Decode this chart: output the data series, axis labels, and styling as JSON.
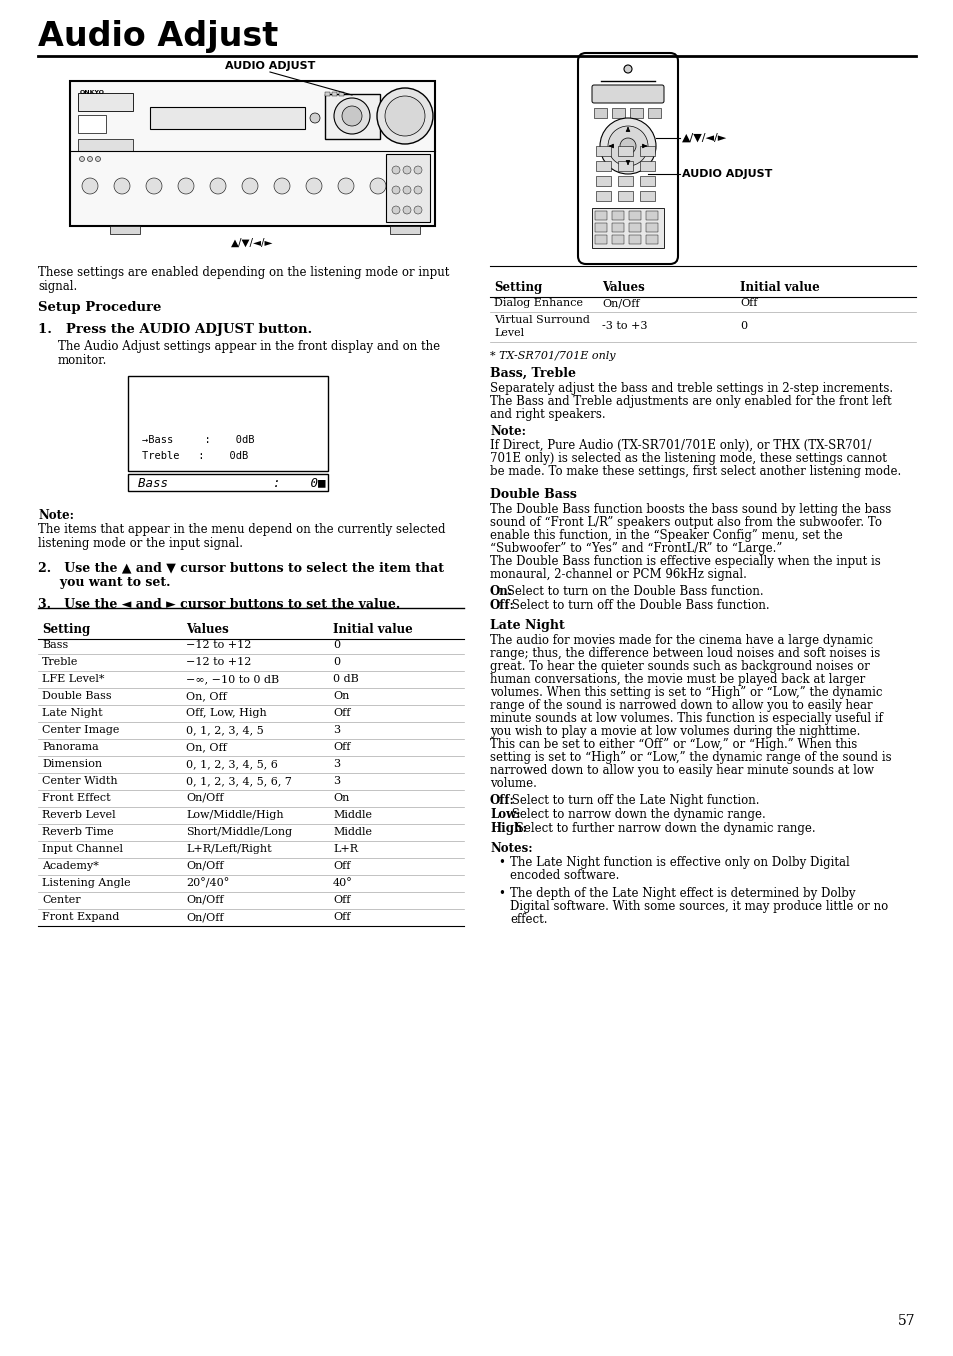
{
  "title": "Audio Adjust",
  "page_number": "57",
  "intro_line1": "These settings are enabled depending on the listening mode or input",
  "intro_line2": "signal.",
  "setup_label": "Setup Procedure",
  "step1_label": "1.   Press the AUDIO ADJUST button.",
  "step1_sub1": "The Audio Adjust settings appear in the front display and on the",
  "step1_sub2": "monitor.",
  "display_line1": "→Bass     :    0dB",
  "display_line2": "Treble   :    0dB",
  "display_bottom_text": "Bass              :    0■",
  "note_label": "Note:",
  "note_line1": "The items that appear in the menu depend on the currently selected",
  "note_line2": "listening mode or the input signal.",
  "step2_line1": "2.   Use the ▲ and ▼ cursor buttons to select the item that",
  "step2_line2": "     you want to set.",
  "step3_line": "3.   Use the ◄ and ► cursor buttons to set the value.",
  "table_headers": [
    "Setting",
    "Values",
    "Initial value"
  ],
  "table_rows": [
    [
      "Bass",
      "−12 to +12",
      "0"
    ],
    [
      "Treble",
      "−12 to +12",
      "0"
    ],
    [
      "LFE Level*",
      "−∞, −10 to 0 dB",
      "0 dB"
    ],
    [
      "Double Bass",
      "On, Off",
      "On"
    ],
    [
      "Late Night",
      "Off, Low, High",
      "Off"
    ],
    [
      "Center Image",
      "0, 1, 2, 3, 4, 5",
      "3"
    ],
    [
      "Panorama",
      "On, Off",
      "Off"
    ],
    [
      "Dimension",
      "0, 1, 2, 3, 4, 5, 6",
      "3"
    ],
    [
      "Center Width",
      "0, 1, 2, 3, 4, 5, 6, 7",
      "3"
    ],
    [
      "Front Effect",
      "On/Off",
      "On"
    ],
    [
      "Reverb Level",
      "Low/Middle/High",
      "Middle"
    ],
    [
      "Reverb Time",
      "Short/Middle/Long",
      "Middle"
    ],
    [
      "Input Channel",
      "L+R/Left/Right",
      "L+R"
    ],
    [
      "Academy*",
      "On/Off",
      "Off"
    ],
    [
      "Listening Angle",
      "20°/40°",
      "40°"
    ],
    [
      "Center",
      "On/Off",
      "Off"
    ],
    [
      "Front Expand",
      "On/Off",
      "Off"
    ]
  ],
  "right_table_rows": [
    [
      "Dialog Enhance",
      "On/Off",
      "Off"
    ],
    [
      "Virtual Surround\nLevel",
      "-3 to +3",
      "0"
    ]
  ],
  "star_note": "* TX-SR701/701E only",
  "bass_treble_title": "Bass, Treble",
  "bt_lines": [
    "Separately adjust the bass and treble settings in 2-step increments.",
    "The Bass and Treble adjustments are only enabled for the front left",
    "and right speakers."
  ],
  "bt_note_label": "Note:",
  "bt_note_lines": [
    "If Direct, Pure Audio (TX-SR701/701E only), or THX (TX-SR701/",
    "701E only) is selected as the listening mode, these settings cannot",
    "be made. To make these settings, first select another listening mode."
  ],
  "db_title": "Double Bass",
  "db_lines": [
    "The Double Bass function boosts the bass sound by letting the bass",
    "sound of “Front L/R” speakers output also from the subwoofer. To",
    "enable this function, in the “Speaker Config” menu, set the",
    "“Subwoofer” to “Yes” and “FrontL/R” to “Large.”",
    "The Double Bass function is effective especially when the input is",
    "monaural, 2-channel or PCM 96kHz signal."
  ],
  "db_on_bold": "On:",
  "db_on_text": " Select to turn on the Double Bass function.",
  "db_off_bold": "Off:",
  "db_off_text": " Select to turn off the Double Bass function.",
  "ln_title": "Late Night",
  "ln_lines": [
    "The audio for movies made for the cinema have a large dynamic",
    "range; thus, the difference between loud noises and soft noises is",
    "great. To hear the quieter sounds such as background noises or",
    "human conversations, the movie must be played back at larger",
    "volumes. When this setting is set to “High” or “Low,” the dynamic",
    "range of the sound is narrowed down to allow you to easily hear",
    "minute sounds at low volumes. This function is especially useful if",
    "you wish to play a movie at low volumes during the nighttime.",
    "This can be set to either “Off” or “Low,” or “High.” When this",
    "setting is set to “High” or “Low,” the dynamic range of the sound is",
    "narrowed down to allow you to easily hear minute sounds at low",
    "volume."
  ],
  "ln_off_bold": "Off:",
  "ln_off_text": " Select to turn off the Late Night function.",
  "ln_low_bold": "Low:",
  "ln_low_text": " Select to narrow down the dynamic range.",
  "ln_high_bold": "High:",
  "ln_high_text": " Select to further narrow down the dynamic range.",
  "notes_label": "Notes:",
  "note_bullet1": [
    "The Late Night function is effective only on Dolby Digital",
    "encoded software."
  ],
  "note_bullet2": [
    "The depth of the Late Night effect is determined by Dolby",
    "Digital software. With some sources, it may produce little or no",
    "effect."
  ],
  "audio_adjust_label": "AUDIO ADJUST",
  "cursor_sym": "▲/▼/◄/►",
  "audio_adjust_right": "AUDIO ADJUST"
}
